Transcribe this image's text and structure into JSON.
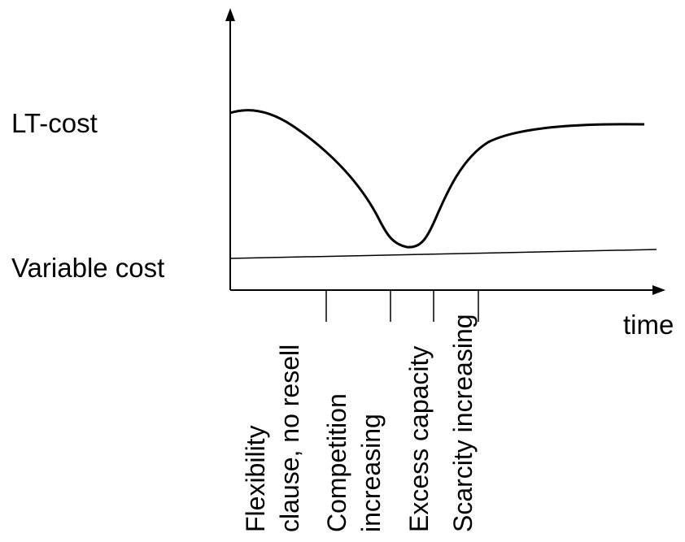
{
  "labels": {
    "lt_cost": "LT-cost",
    "variable_cost": "Variable cost",
    "time_axis": "time"
  },
  "phases": [
    {
      "line1": "Flexibility",
      "line2": "clause, no resell"
    },
    {
      "line1": "Competition",
      "line2": "increasing"
    },
    {
      "line1": "Excess capacity",
      "line2": ""
    },
    {
      "line1": "Scarcity increasing",
      "line2": ""
    }
  ],
  "colors": {
    "ink": "#000000",
    "background": "#ffffff"
  }
}
